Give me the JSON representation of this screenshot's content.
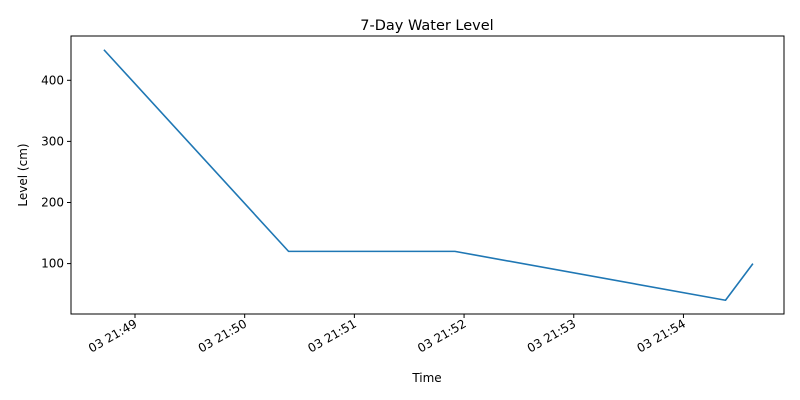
{
  "chart_data": {
    "type": "line",
    "title": "7-Day Water Level",
    "xlabel": "Time",
    "ylabel": "Level (cm)",
    "x": [
      "03 21:48:43",
      "03 21:50:24",
      "03 21:51:55",
      "03 21:54:23",
      "03 21:54:38"
    ],
    "series": [
      {
        "values": [
          450,
          120,
          120,
          40,
          100
        ],
        "color": "#1f77b4"
      }
    ],
    "xlim": [
      "03 21:48:25",
      "03 21:54:55"
    ],
    "ylim": [
      17.5,
      472.5
    ],
    "x_ticks": [
      "03 21:49",
      "03 21:50",
      "03 21:51",
      "03 21:52",
      "03 21:53",
      "03 21:54"
    ],
    "y_ticks": [
      100,
      200,
      300,
      400
    ],
    "grid": false,
    "legend": "none"
  }
}
